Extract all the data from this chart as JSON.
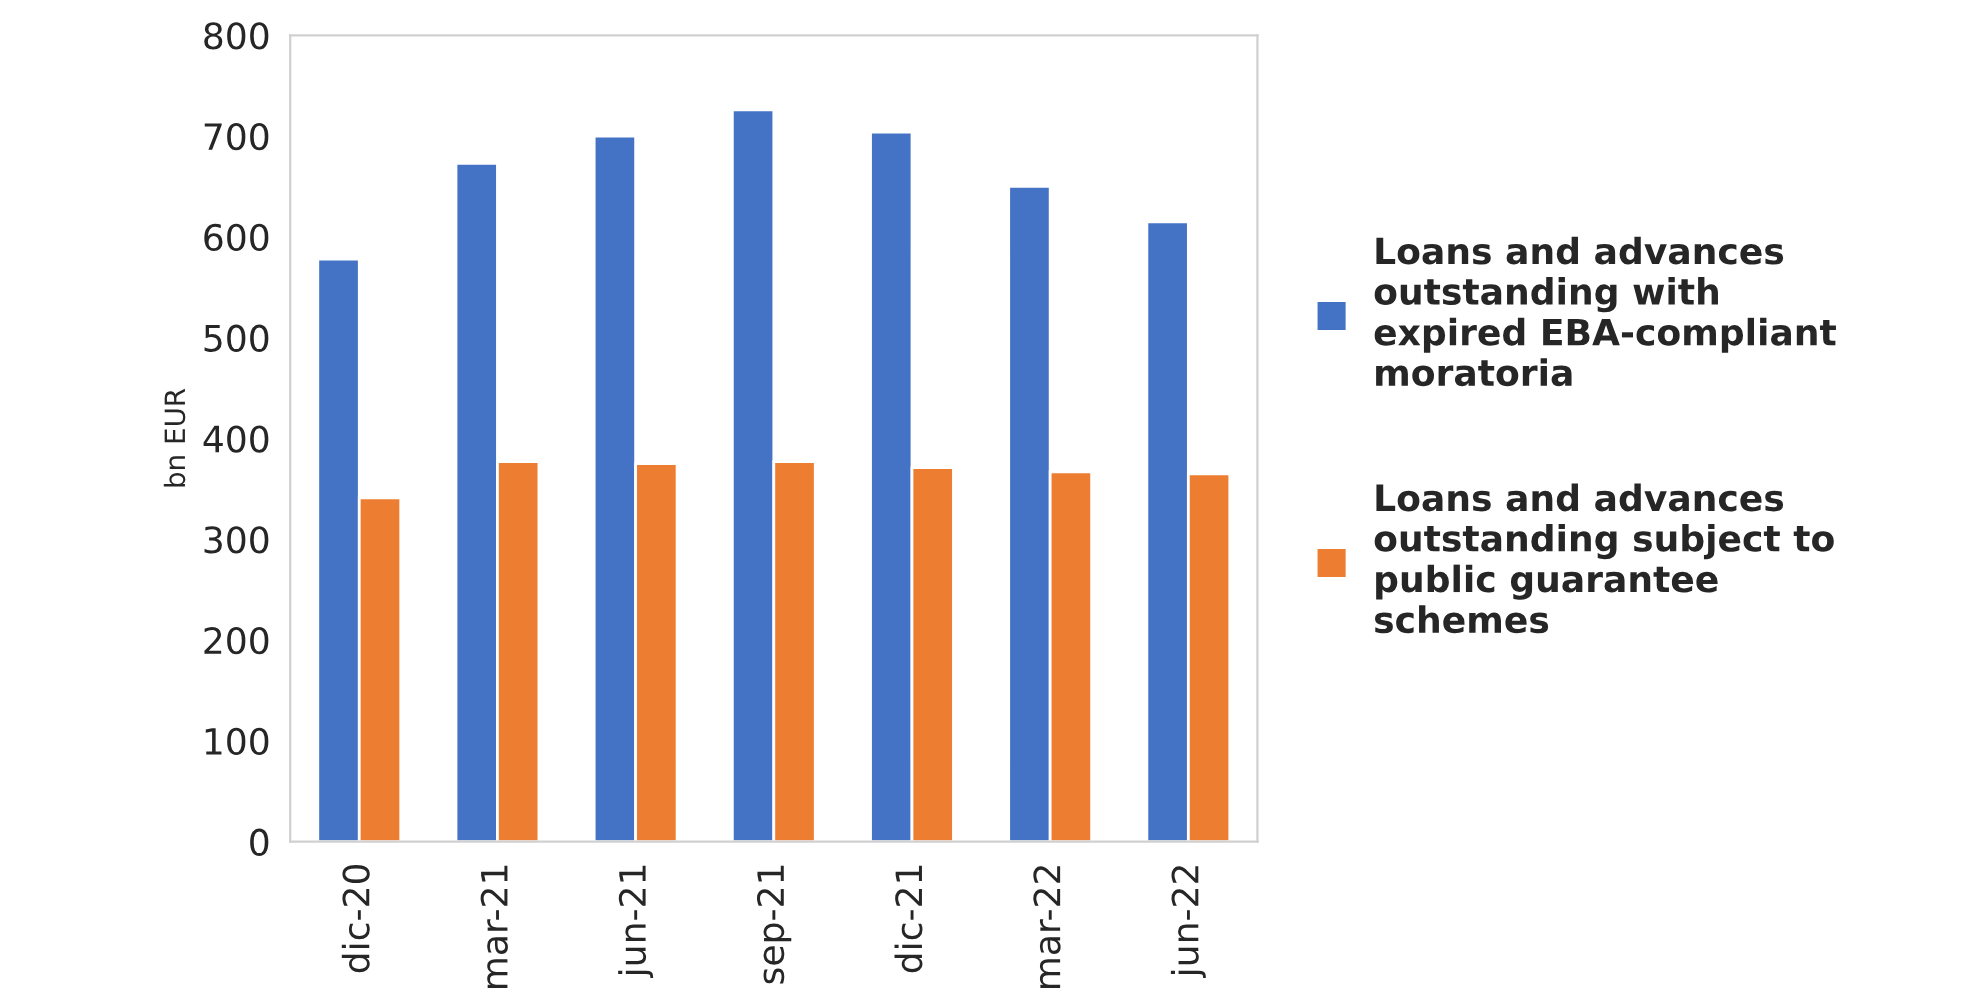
{
  "chart_data": {
    "type": "bar",
    "ylabel": "bn EUR",
    "categories": [
      "dic-20",
      "mar-21",
      "jun-21",
      "sep-21",
      "dic-21",
      "mar-22",
      "jun-22"
    ],
    "series": [
      {
        "name": "Loans and advances\noutstanding with\nexpired EBA-compliant\nmoratoria",
        "color": "#4472c4",
        "values": [
          578,
          673,
          700,
          726,
          704,
          650,
          615
        ]
      },
      {
        "name": "Loans and advances\noutstanding subject to\npublic guarantee\nschemes",
        "color": "#ed7d31",
        "values": [
          341,
          377,
          375,
          377,
          371,
          367,
          365
        ]
      }
    ],
    "ylim": [
      0,
      800
    ],
    "yticks": [
      0,
      100,
      200,
      300,
      400,
      500,
      600,
      700,
      800
    ],
    "grid": false,
    "legend": "right"
  }
}
